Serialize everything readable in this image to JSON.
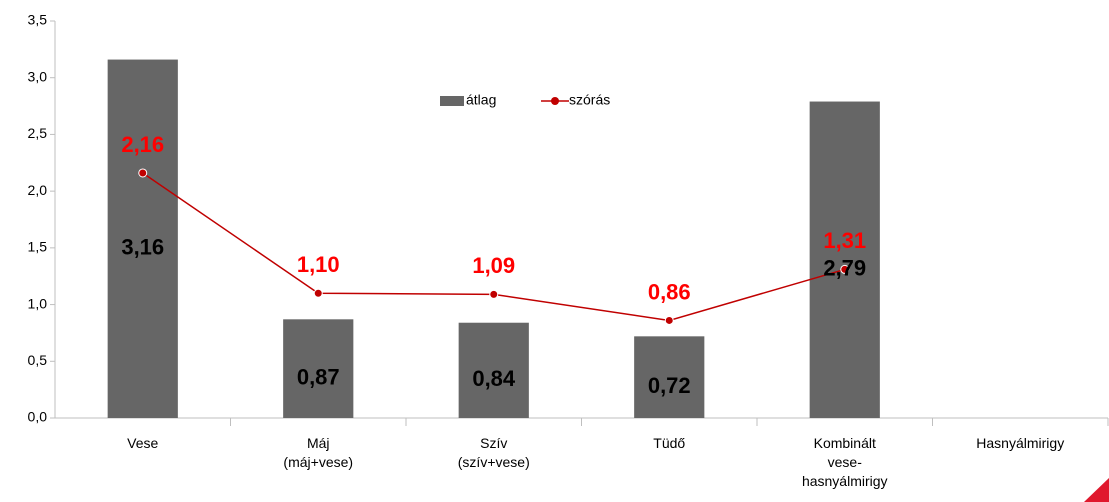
{
  "chart_data": {
    "type": "bar_line",
    "categories": [
      "Vese",
      "Máj\n(máj+vese)",
      "Szív\n(szív+vese)",
      "Tüdő",
      "Kombinált\nvese-\nhasnyálmirigy",
      "Hasnyálmirigy"
    ],
    "series": [
      {
        "name": "átlag",
        "type": "bar",
        "color": "#666666",
        "values": [
          3.16,
          0.87,
          0.84,
          0.72,
          2.79,
          null
        ],
        "value_labels": [
          "3,16",
          "0,87",
          "0,84",
          "0,72",
          "2,79",
          null
        ],
        "label_color": "#000000"
      },
      {
        "name": "szórás",
        "type": "line",
        "color": "#c00000",
        "values": [
          2.16,
          1.1,
          1.09,
          0.86,
          1.31,
          null
        ],
        "value_labels": [
          "2,16",
          "1,10",
          "1,09",
          "0,86",
          "1,31",
          null
        ],
        "label_color": "#ff0000"
      }
    ],
    "ylim": [
      0,
      3.5
    ],
    "yticks": [
      {
        "value": 0,
        "label": "0,0"
      },
      {
        "value": 0.5,
        "label": "0,5"
      },
      {
        "value": 1,
        "label": "1,0"
      },
      {
        "value": 1.5,
        "label": "1,5"
      },
      {
        "value": 2,
        "label": "2,0"
      },
      {
        "value": 2.5,
        "label": "2,5"
      },
      {
        "value": 3,
        "label": "3,0"
      },
      {
        "value": 3.5,
        "label": "3,5"
      }
    ],
    "legend": "top",
    "grid": false
  }
}
